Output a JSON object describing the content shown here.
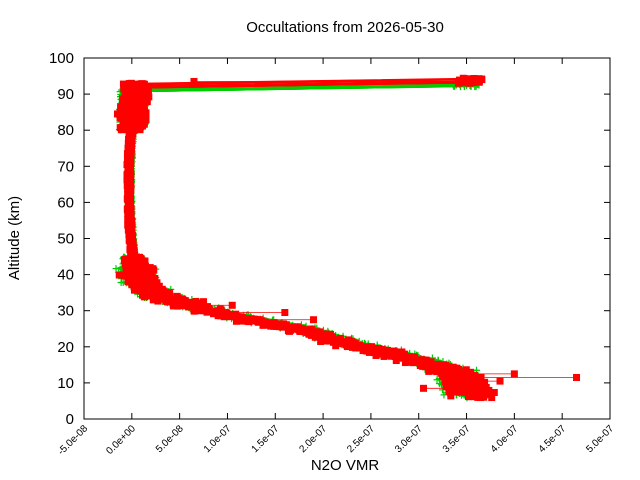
{
  "chart_data": {
    "type": "scatter",
    "title": "Occultations from 2026-05-30",
    "xlabel": "N2O VMR",
    "ylabel": "Altitude (km)",
    "xlim": [
      -5e-08,
      5e-07
    ],
    "ylim": [
      0,
      100
    ],
    "x_ticks": [
      "-5.0e-08",
      "0.0e+00",
      "5.0e-08",
      "1.0e-07",
      "1.5e-07",
      "2.0e-07",
      "2.5e-07",
      "3.0e-07",
      "3.5e-07",
      "4.0e-07",
      "4.5e-07",
      "5.0e-07"
    ],
    "y_ticks": [
      "0",
      "10",
      "20",
      "30",
      "40",
      "50",
      "60",
      "70",
      "80",
      "90",
      "100"
    ],
    "grid": false,
    "legend": "none",
    "series": [
      {
        "marker": "plus",
        "color": "#00cc00",
        "profile": [
          [
            2e-09,
            92
          ],
          [
            0,
            80
          ],
          [
            -2e-09,
            70
          ],
          [
            -2e-09,
            60
          ],
          [
            0,
            50
          ],
          [
            3e-09,
            42
          ],
          [
            1e-08,
            38
          ],
          [
            3e-08,
            34
          ],
          [
            7e-08,
            31
          ],
          [
            1.2e-07,
            28
          ],
          [
            1.8e-07,
            25
          ],
          [
            2.3e-07,
            21
          ],
          [
            2.8e-07,
            18
          ],
          [
            3.2e-07,
            15
          ],
          [
            3.4e-07,
            13
          ],
          [
            3.45e-07,
            10
          ],
          [
            3.5e-07,
            7
          ]
        ]
      },
      {
        "marker": "square",
        "color": "#ff0000",
        "profile": [
          [
            5e-09,
            93
          ],
          [
            0,
            82
          ],
          [
            -3e-09,
            72
          ],
          [
            -3e-09,
            62
          ],
          [
            -2e-09,
            52
          ],
          [
            2e-09,
            43
          ],
          [
            8e-09,
            38
          ],
          [
            2.5e-08,
            34
          ],
          [
            6.5e-08,
            31
          ],
          [
            1.1e-07,
            28
          ],
          [
            1.7e-07,
            25
          ],
          [
            2.2e-07,
            21
          ],
          [
            2.7e-07,
            18
          ],
          [
            3.1e-07,
            15
          ],
          [
            3.35e-07,
            13
          ],
          [
            3.45e-07,
            10
          ],
          [
            3.55e-07,
            7
          ]
        ],
        "outliers": [
          [
            4.65e-07,
            11.5
          ],
          [
            4e-07,
            12.5
          ],
          [
            3.85e-07,
            10.5
          ],
          [
            6.5e-08,
            93.5
          ],
          [
            -1.5e-08,
            84.5
          ],
          [
            1.9e-07,
            27.5
          ],
          [
            1.6e-07,
            29.5
          ],
          [
            3.05e-07,
            8.5
          ],
          [
            1.05e-07,
            31.5
          ],
          [
            7.5e-08,
            32.5
          ]
        ]
      }
    ]
  }
}
